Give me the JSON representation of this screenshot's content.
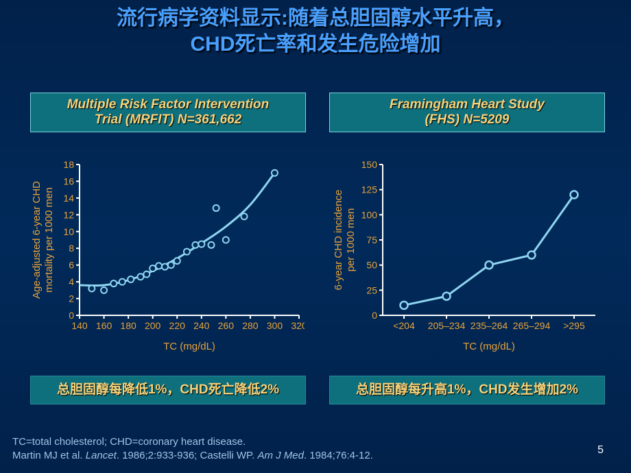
{
  "title_line1": "流行病学资料显示:随着总胆固醇水平升高，",
  "title_line2": "CHD死亡率和发生危险增加",
  "slide_number": "5",
  "footnote_line1": "TC=total cholesterol; CHD=coronary heart disease.",
  "footnote_line2_a": "Martin MJ et al. ",
  "footnote_line2_ital1": "Lancet",
  "footnote_line2_b": ". 1986;2:933-936; Castelli WP. ",
  "footnote_line2_ital2": "Am J Med",
  "footnote_line2_c": ". 1984;76:4-12.",
  "left": {
    "heading_l1": "Multiple Risk Factor Intervention",
    "heading_l2": "Trial (MRFIT) N=361,662",
    "caption": "总胆固醇每降低1%，CHD死亡降低2%",
    "chart": {
      "type": "scatter+line",
      "xlabel": "TC (mg/dL)",
      "ylabel_l1": "Age-adjusted 6-year CHD",
      "ylabel_l2": "mortality per 1000 men",
      "xlim": [
        140,
        320
      ],
      "ylim": [
        0,
        18
      ],
      "xticks": [
        140,
        160,
        180,
        200,
        220,
        240,
        260,
        280,
        300,
        320
      ],
      "yticks": [
        0,
        2,
        4,
        6,
        8,
        10,
        12,
        14,
        16,
        18
      ],
      "line_color": "#8fd5f0",
      "marker_color": "#8fd5f0",
      "marker_fill": "#012a5a",
      "axis_color": "#ffffff",
      "text_color": "#e8a23a",
      "line_width": 3,
      "marker_r": 4.5,
      "scatter": [
        [
          150,
          3.2
        ],
        [
          160,
          3.0
        ],
        [
          168,
          3.8
        ],
        [
          175,
          4.0
        ],
        [
          182,
          4.3
        ],
        [
          190,
          4.6
        ],
        [
          195,
          4.9
        ],
        [
          200,
          5.6
        ],
        [
          205,
          5.9
        ],
        [
          210,
          5.8
        ],
        [
          215,
          6.0
        ],
        [
          220,
          6.5
        ],
        [
          228,
          7.6
        ],
        [
          235,
          8.4
        ],
        [
          240,
          8.5
        ],
        [
          248,
          8.4
        ],
        [
          252,
          12.8
        ],
        [
          260,
          9.0
        ],
        [
          275,
          11.8
        ],
        [
          300,
          17.0
        ]
      ],
      "curve": [
        [
          140,
          3.6
        ],
        [
          160,
          3.6
        ],
        [
          180,
          4.2
        ],
        [
          200,
          5.3
        ],
        [
          220,
          6.8
        ],
        [
          240,
          8.6
        ],
        [
          260,
          10.6
        ],
        [
          280,
          13.2
        ],
        [
          300,
          17.0
        ]
      ]
    }
  },
  "right": {
    "heading_l1": "Framingham Heart Study",
    "heading_l2": "(FHS) N=5209",
    "caption": "总胆固醇每升高1%，CHD发生增加2%",
    "chart": {
      "type": "line",
      "xlabel": "TC (mg/dL)",
      "ylabel_l1": "6-year CHD incidence",
      "ylabel_l2": "per 1000 men",
      "categories": [
        "<204",
        "205–234",
        "235–264",
        "265–294",
        ">295"
      ],
      "ylim": [
        0,
        150
      ],
      "yticks": [
        0,
        25,
        50,
        75,
        100,
        125,
        150
      ],
      "line_color": "#8fd5f0",
      "marker_color": "#8fd5f0",
      "marker_fill": "#012a5a",
      "axis_color": "#ffffff",
      "text_color": "#e8a23a",
      "line_width": 3,
      "marker_r": 5.5,
      "values": [
        10,
        19,
        50,
        60,
        120
      ]
    }
  }
}
